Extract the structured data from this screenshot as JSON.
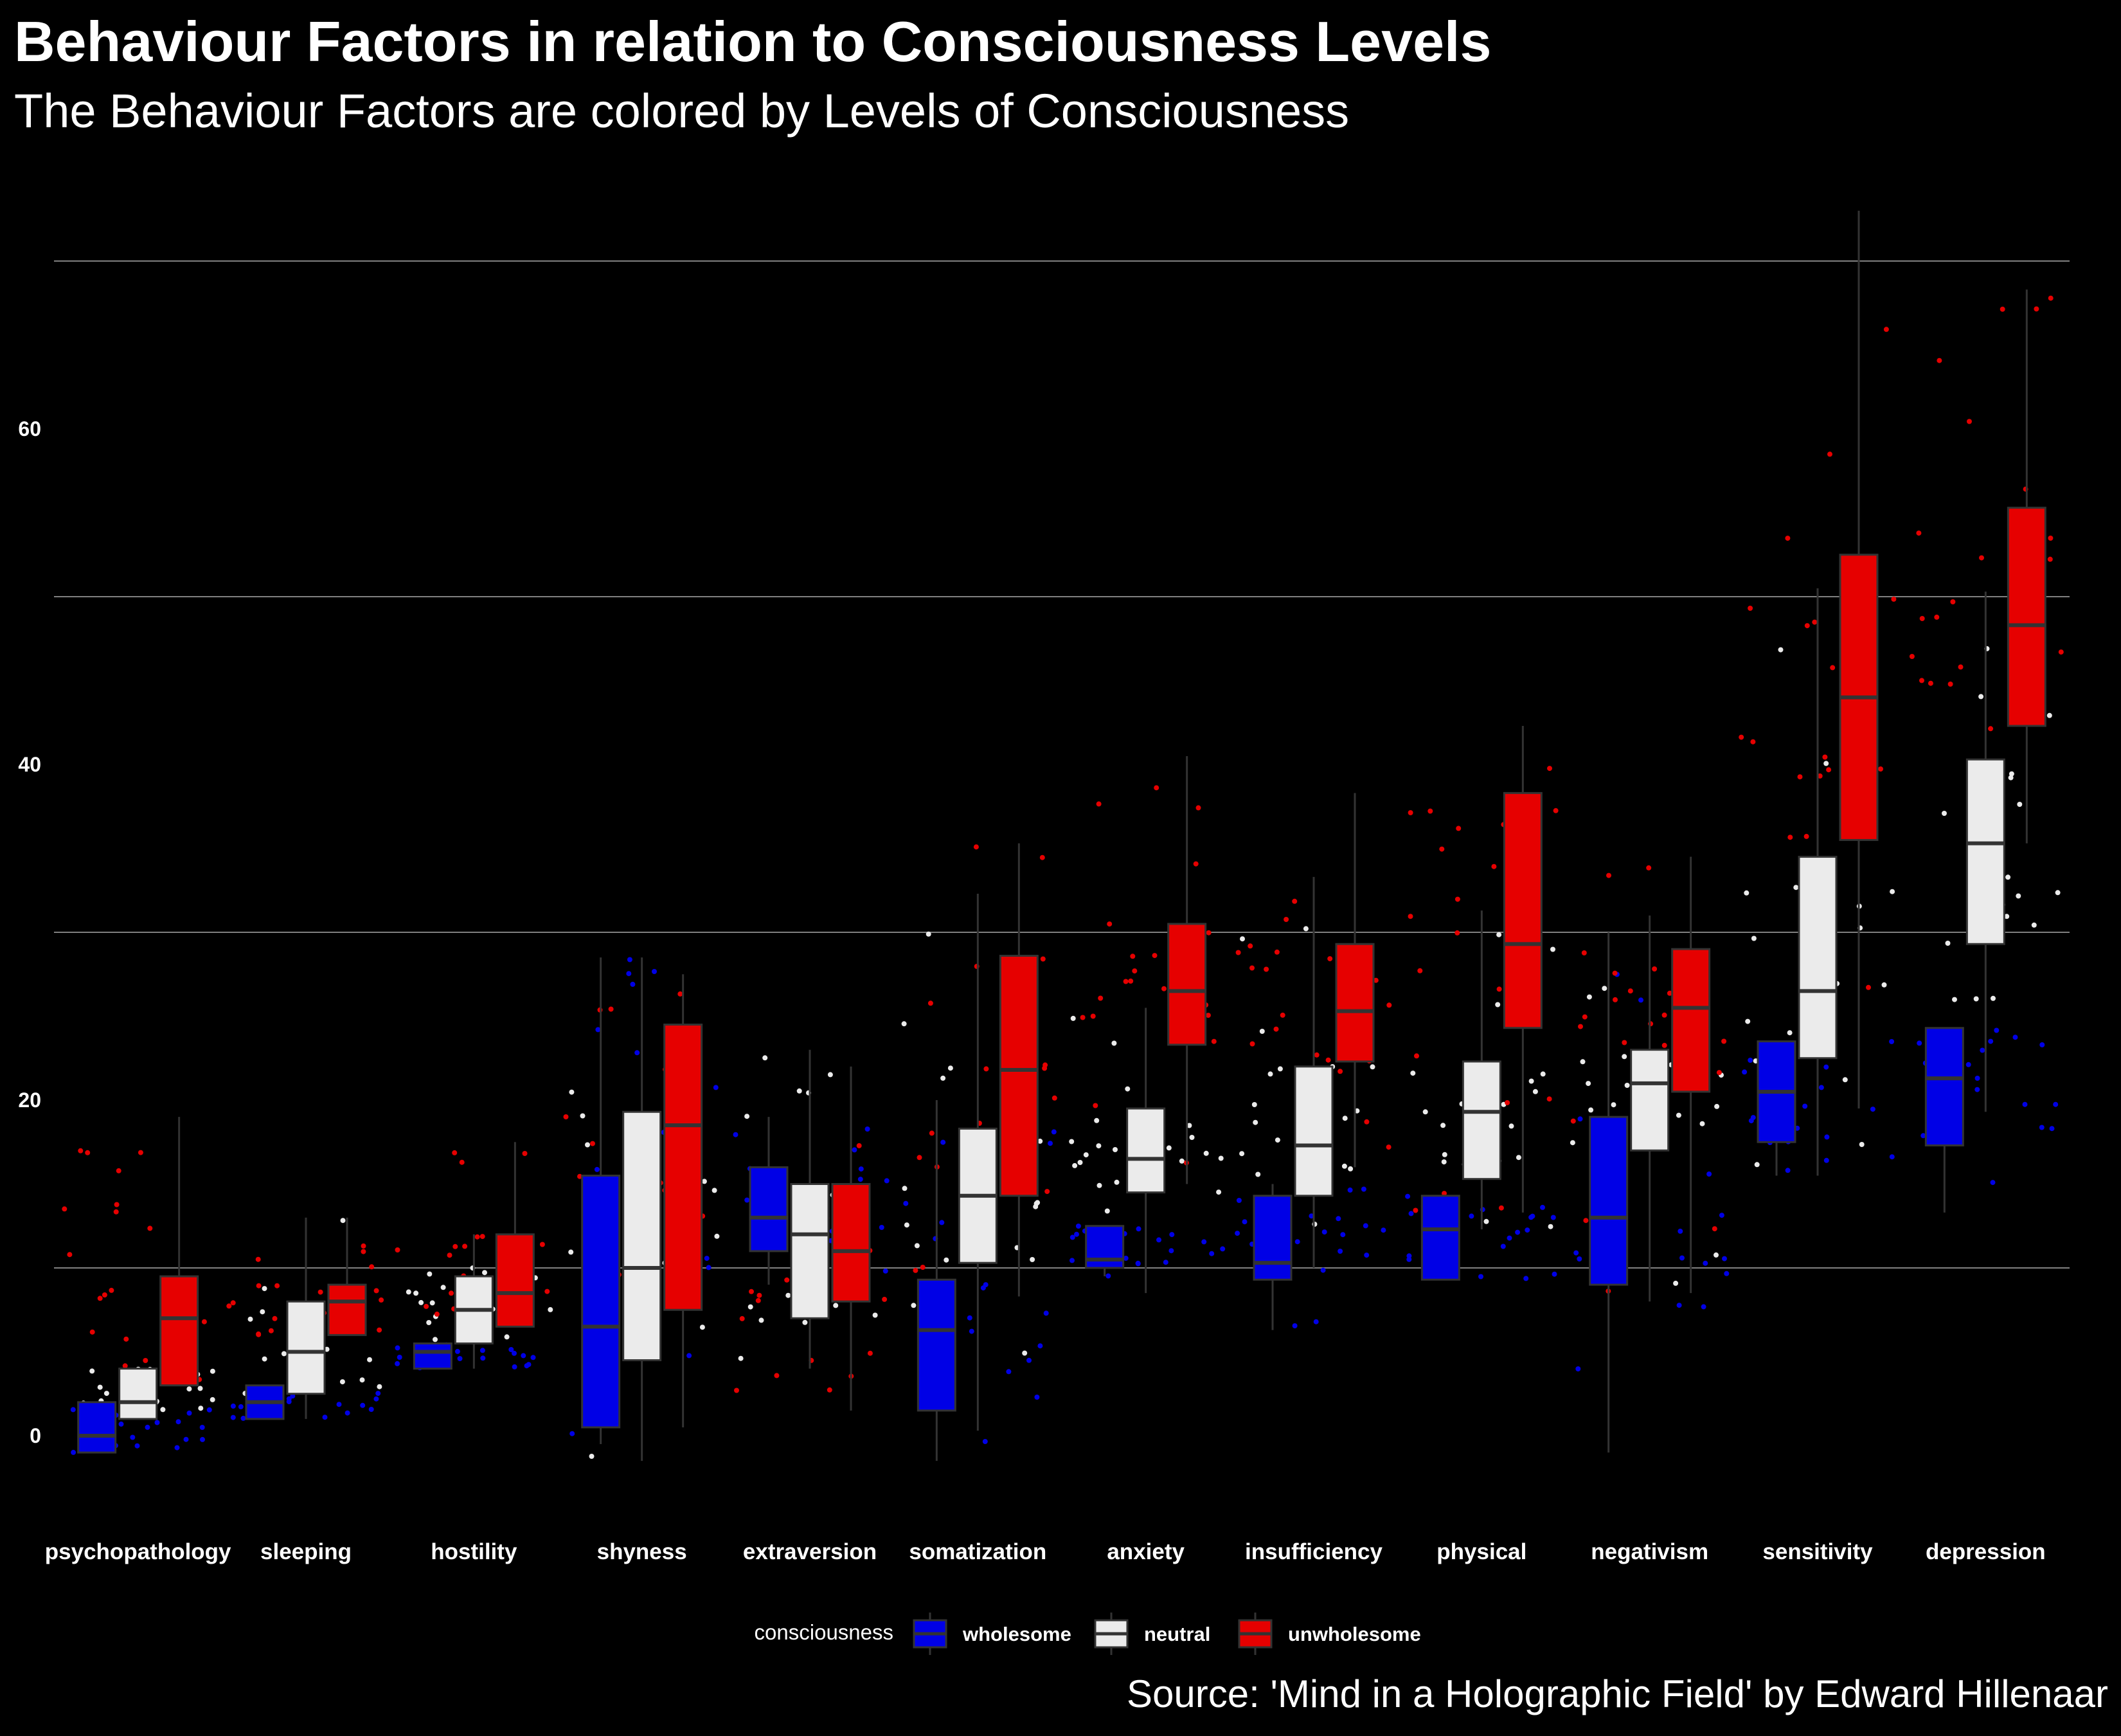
{
  "title": "Behaviour Factors in relation to Consciousness Levels",
  "subtitle": "The Behaviour Factors are colored by Levels of Consciousness",
  "source": "Source: 'Mind in a Holographic Field' by Edward Hillenaar",
  "chart_data": {
    "type": "box",
    "title": "Behaviour Factors in relation to Consciousness Levels",
    "subtitle": "The Behaviour Factors are colored by Levels of Consciousness",
    "xlabel": "",
    "ylabel": "",
    "ylim": [
      -4,
      74
    ],
    "yticks": [
      0,
      20,
      40,
      60
    ],
    "grid": true,
    "legend": {
      "title": "consciousness",
      "position": "bottom",
      "entries": [
        "wholesome",
        "neutral",
        "unwholesome"
      ]
    },
    "colors": {
      "background": "#000000",
      "grid": "#808080",
      "wholesome": "#0000e6",
      "neutral": "#ebebeb",
      "unwholesome": "#e60000",
      "box_border": "#333333",
      "whisker": "#333333"
    },
    "categories": [
      "psychopathology",
      "sleeping",
      "hostility",
      "shyness",
      "extraversion",
      "somatization",
      "anxiety",
      "insufficiency",
      "physical",
      "negativism",
      "sensitivity",
      "depression"
    ],
    "series": [
      {
        "name": "wholesome",
        "boxes": [
          {
            "min": -1,
            "q1": -1,
            "median": 0,
            "q3": 2,
            "max": 2
          },
          {
            "min": 1,
            "q1": 1,
            "median": 2,
            "q3": 3,
            "max": 3
          },
          {
            "min": 4,
            "q1": 4,
            "median": 5,
            "q3": 5.5,
            "max": 5.5
          },
          {
            "min": -0.5,
            "q1": 0.5,
            "median": 6.5,
            "q3": 15.5,
            "max": 28.5
          },
          {
            "min": 9,
            "q1": 11,
            "median": 13,
            "q3": 16,
            "max": 19
          },
          {
            "min": -1.5,
            "q1": 1.5,
            "median": 6.3,
            "q3": 9.3,
            "max": 20
          },
          {
            "min": 9.5,
            "q1": 10,
            "median": 10.5,
            "q3": 12.5,
            "max": 12.5
          },
          {
            "min": 6.3,
            "q1": 9.3,
            "median": 10.3,
            "q3": 14.3,
            "max": 15
          },
          {
            "min": 9.3,
            "q1": 9.3,
            "median": 12.3,
            "q3": 14.3,
            "max": 14.3
          },
          {
            "min": -1,
            "q1": 9,
            "median": 13,
            "q3": 19,
            "max": 30
          },
          {
            "min": 15.5,
            "q1": 17.5,
            "median": 20.5,
            "q3": 23.5,
            "max": 23.5
          },
          {
            "min": 13.3,
            "q1": 17.3,
            "median": 21.3,
            "q3": 24.3,
            "max": 24.3
          }
        ]
      },
      {
        "name": "neutral",
        "boxes": [
          {
            "min": 1,
            "q1": 1,
            "median": 2,
            "q3": 4,
            "max": 4
          },
          {
            "min": 1,
            "q1": 2.5,
            "median": 5,
            "q3": 8,
            "max": 13
          },
          {
            "min": 4,
            "q1": 5.5,
            "median": 7.5,
            "q3": 9.5,
            "max": 12
          },
          {
            "min": -1.5,
            "q1": 4.5,
            "median": 10,
            "q3": 19.3,
            "max": 28.5
          },
          {
            "min": 4,
            "q1": 7,
            "median": 12,
            "q3": 15,
            "max": 23
          },
          {
            "min": 0.3,
            "q1": 10.3,
            "median": 14.3,
            "q3": 18.3,
            "max": 32.3
          },
          {
            "min": 8.5,
            "q1": 14.5,
            "median": 16.5,
            "q3": 19.5,
            "max": 25.5
          },
          {
            "min": 10,
            "q1": 14.3,
            "median": 17.3,
            "q3": 22,
            "max": 33.3
          },
          {
            "min": 12.3,
            "q1": 15.3,
            "median": 19.3,
            "q3": 22.3,
            "max": 31.3
          },
          {
            "min": 8,
            "q1": 17,
            "median": 21,
            "q3": 23,
            "max": 31
          },
          {
            "min": 15.5,
            "q1": 22.5,
            "median": 26.5,
            "q3": 34.5,
            "max": 50.5
          },
          {
            "min": 19.3,
            "q1": 29.3,
            "median": 35.3,
            "q3": 40.3,
            "max": 50.3
          }
        ]
      },
      {
        "name": "unwholesome",
        "boxes": [
          {
            "min": 3,
            "q1": 3,
            "median": 7,
            "q3": 9.5,
            "max": 19
          },
          {
            "min": 6,
            "q1": 6,
            "median": 8,
            "q3": 9,
            "max": 13
          },
          {
            "min": 6.5,
            "q1": 6.5,
            "median": 8.5,
            "q3": 12,
            "max": 17.5
          },
          {
            "min": 0.5,
            "q1": 7.5,
            "median": 18.5,
            "q3": 24.5,
            "max": 27.5
          },
          {
            "min": 1.5,
            "q1": 8,
            "median": 11,
            "q3": 15,
            "max": 22
          },
          {
            "min": 8.3,
            "q1": 14.3,
            "median": 21.8,
            "q3": 28.6,
            "max": 35.3
          },
          {
            "min": 15,
            "q1": 23.3,
            "median": 26.5,
            "q3": 30.5,
            "max": 40.5
          },
          {
            "min": 16,
            "q1": 22.3,
            "median": 25.3,
            "q3": 29.3,
            "max": 38.3
          },
          {
            "min": 13.3,
            "q1": 24.3,
            "median": 29.3,
            "q3": 38.3,
            "max": 42.3
          },
          {
            "min": 8.5,
            "q1": 20.5,
            "median": 25.5,
            "q3": 29,
            "max": 34.5
          },
          {
            "min": 19.5,
            "q1": 35.5,
            "median": 44,
            "q3": 52.5,
            "max": 73
          },
          {
            "min": 35.3,
            "q1": 42.3,
            "median": 48.3,
            "q3": 55.3,
            "max": 68.3
          }
        ]
      }
    ]
  }
}
